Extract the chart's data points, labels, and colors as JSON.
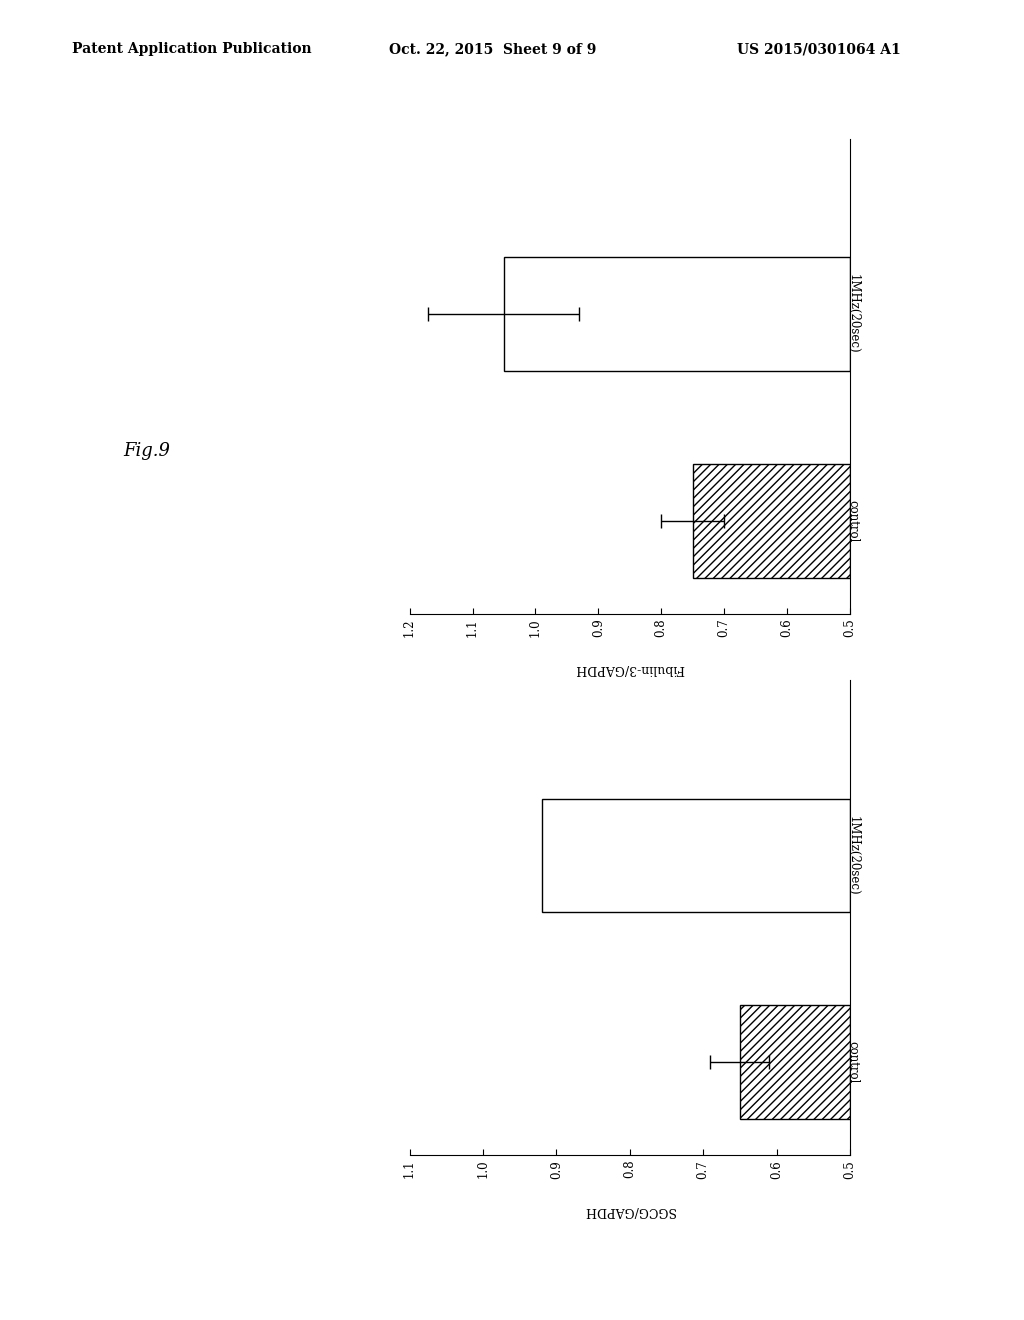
{
  "header_left": "Patent Application Publication",
  "header_mid": "Oct. 22, 2015  Sheet 9 of 9",
  "header_right": "US 2015/0301064 A1",
  "fig_label": "Fig.9",
  "chart1": {
    "ylabel": "Fibulin-3/GAPDH",
    "xlim": [
      0.5,
      1.2
    ],
    "xticks": [
      1.2,
      1.1,
      1.0,
      0.9,
      0.8,
      0.7,
      0.6,
      0.5
    ],
    "xtick_labels": [
      "1.2",
      "1.1",
      "1.0",
      "0.9",
      "0.8",
      "0.7",
      "0.6",
      "0.5"
    ],
    "categories": [
      "1MHz(20sec)",
      "control"
    ],
    "values": [
      1.05,
      0.75
    ],
    "errors": [
      0.12,
      0.05
    ],
    "hatched": [
      false,
      true
    ]
  },
  "chart2": {
    "ylabel": "SGCG/GAPDH",
    "xlim": [
      0.5,
      1.1
    ],
    "xticks": [
      1.1,
      1.0,
      0.9,
      0.8,
      0.7,
      0.6,
      0.5
    ],
    "xtick_labels": [
      "1.1",
      "1.0",
      "0.9",
      "0.8",
      "0.7",
      "0.6",
      "0.5"
    ],
    "categories": [
      "1MHz(20sec)",
      "control"
    ],
    "values": [
      0.92,
      0.65
    ],
    "errors": [
      0.0,
      0.04
    ],
    "hatched": [
      false,
      true
    ]
  },
  "bg_color": "#ffffff",
  "bar_height": 0.55,
  "hatch_pattern": "////",
  "bar_edge_color": "#000000",
  "bar_face_color": "#ffffff"
}
